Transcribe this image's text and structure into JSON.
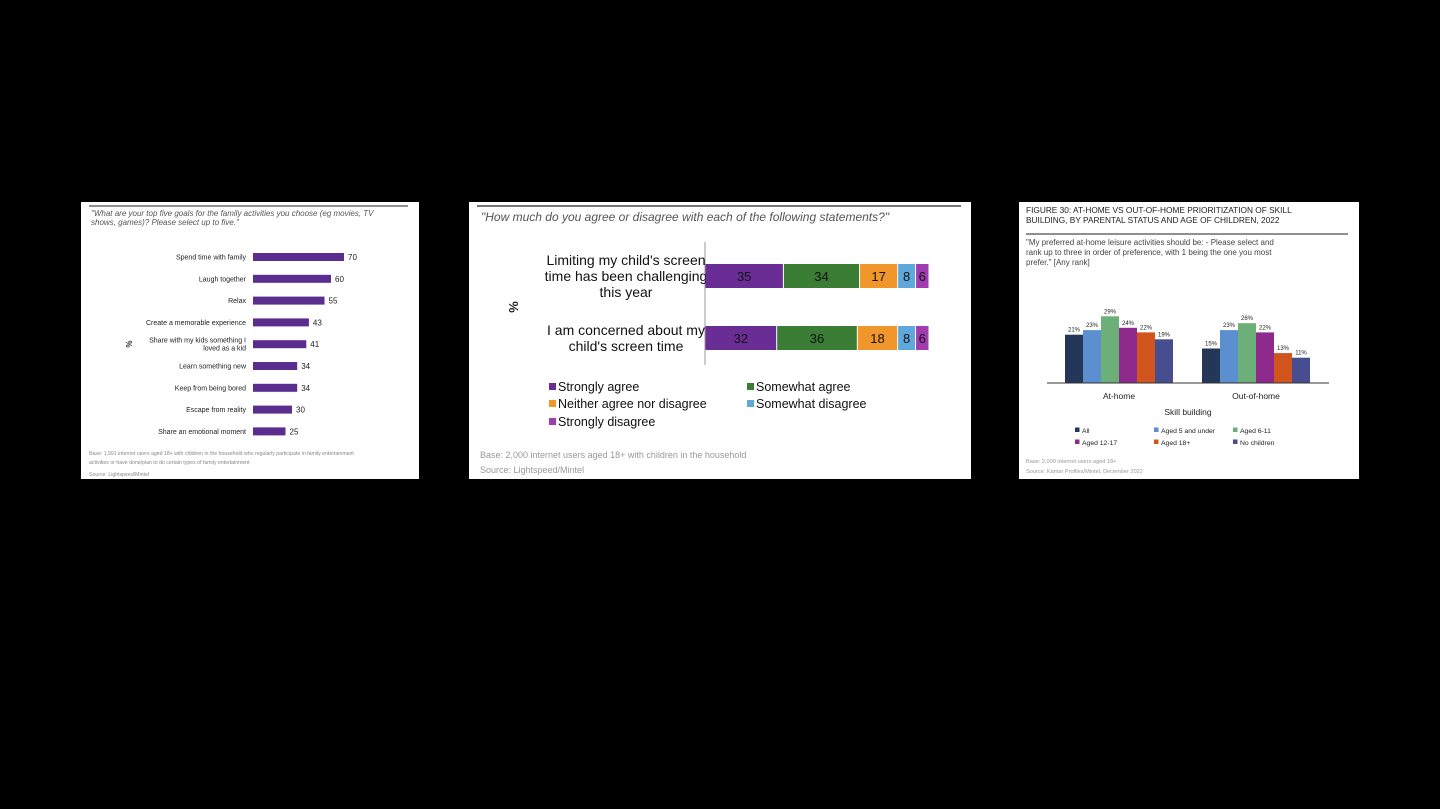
{
  "chart_data": [
    {
      "type": "bar",
      "orientation": "horizontal",
      "title": "\"What are your top five goals for the family activities you choose (eg movies, TV shows, games)? Please select up to five.\"",
      "title_lines": [
        "\"What are your top five goals for the family activities you choose (eg movies, TV",
        "shows, games)? Please select up to five.\""
      ],
      "ylabel": "%",
      "categories": [
        "Spend time with family",
        "Laugh together",
        "Relax",
        "Create a memorable experience",
        "Share with my kids something I loved as a kid",
        "Learn something new",
        "Keep from being bored",
        "Escape from reality",
        "Share an emotional moment"
      ],
      "category_lines": [
        [
          "Spend time with family"
        ],
        [
          "Laugh together"
        ],
        [
          "Relax"
        ],
        [
          "Create a memorable experience"
        ],
        [
          "Share with my kids something I",
          "loved as a kid"
        ],
        [
          "Learn something new"
        ],
        [
          "Keep from being bored"
        ],
        [
          "Escape from reality"
        ],
        [
          "Share an emotional moment"
        ]
      ],
      "values": [
        70,
        60,
        55,
        43,
        41,
        34,
        34,
        30,
        25
      ],
      "color": "#5b2d8e",
      "base": "Base: 1,991 internet users aged 18+ with children in the household who regularly participate in family entertainment activities or have done/plan to do certain types of family entertainment",
      "base_lines": [
        "Base: 1,991 internet users aged 18+ with children in the household who regularly participate in family entertainment",
        "activities or have done/plan to do certain types of family entertainment"
      ],
      "source": "Source: Lightspeed/Mintel"
    },
    {
      "type": "bar",
      "orientation": "horizontal",
      "stacked": true,
      "title": "\"How much do you agree or disagree with each of the following statements?\"",
      "ylabel": "%",
      "categories": [
        "Limiting my child's screen time has been challenging this year",
        "I am concerned about my child's screen time"
      ],
      "category_lines": [
        [
          "Limiting my child's screen",
          "time has been challenging",
          "this year"
        ],
        [
          "I am concerned about my",
          "child's screen time"
        ]
      ],
      "series": [
        {
          "name": "Strongly agree",
          "values": [
            35,
            32
          ],
          "color": "#6a2d96"
        },
        {
          "name": "Somewhat agree",
          "values": [
            34,
            36
          ],
          "color": "#3b7d35"
        },
        {
          "name": "Neither agree nor disagree",
          "values": [
            17,
            18
          ],
          "color": "#f0962a"
        },
        {
          "name": "Somewhat disagree",
          "values": [
            8,
            8
          ],
          "color": "#5ea8dc"
        },
        {
          "name": "Strongly disagree",
          "values": [
            6,
            6
          ],
          "color": "#a03bb0"
        }
      ],
      "base": "Base: 2,000 internet users aged 18+ with children in the household",
      "source": "Source: Lightspeed/Mintel"
    },
    {
      "type": "bar",
      "title": "FIGURE 30: AT-HOME VS OUT-OF-HOME PRIORITIZATION OF SKILL BUILDING, BY PARENTAL STATUS AND AGE OF CHILDREN, 2022",
      "title_lines": [
        "FIGURE 30: AT-HOME VS OUT-OF-HOME PRIORITIZATION OF SKILL",
        "BUILDING, BY PARENTAL STATUS AND AGE OF CHILDREN, 2022"
      ],
      "subtitle": "\"My preferred at-home leisure activities should be: - Please select and rank up to three in order of preference, with 1 being the one you most prefer.\" [Any rank]",
      "subtitle_lines": [
        "\"My preferred at-home leisure activities should be: - Please select and",
        "rank up to three in order of preference, with 1 being the one you most",
        "prefer.\" [Any rank]"
      ],
      "xlabel": "Skill building",
      "categories": [
        "At-home",
        "Out-of-home"
      ],
      "series": [
        {
          "name": "All",
          "values": [
            21,
            15
          ],
          "color": "#253759"
        },
        {
          "name": "Aged 5 and under",
          "values": [
            23,
            23
          ],
          "color": "#5b8fd0"
        },
        {
          "name": "Aged 6-11",
          "values": [
            29,
            26
          ],
          "color": "#6daf78"
        },
        {
          "name": "Aged 12-17",
          "values": [
            24,
            22
          ],
          "color": "#8e2a8c"
        },
        {
          "name": "Aged 18+",
          "values": [
            22,
            13
          ],
          "color": "#d0541c"
        },
        {
          "name": "No children",
          "values": [
            19,
            11
          ],
          "color": "#474e8f"
        }
      ],
      "value_suffix": "%",
      "base": "Base: 2,000 internet users aged 18+",
      "source": "Source: Kantar Profiles/Mintel, December 2022"
    }
  ]
}
